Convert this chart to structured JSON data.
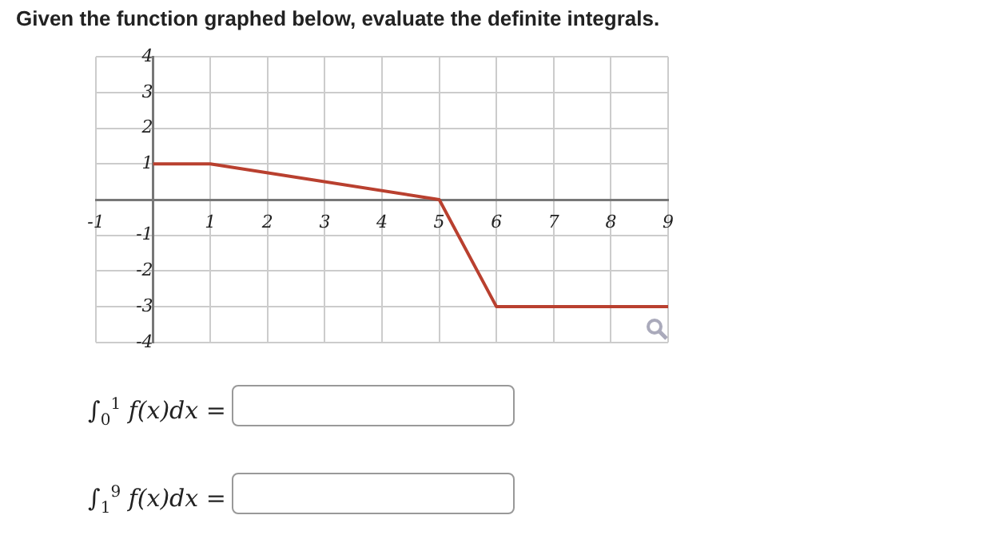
{
  "chart_data": {
    "type": "line",
    "title": "Given the function graphed below, evaluate the definite integrals.",
    "x": [
      0,
      1,
      5,
      6,
      9
    ],
    "series": [
      {
        "color": "#b9402f",
        "values": [
          1,
          1,
          0,
          -3,
          -3
        ]
      }
    ],
    "xlim": [
      -1,
      9
    ],
    "xticks": [
      -1,
      {
        "value": 0,
        "label": null
      },
      1,
      2,
      3,
      4,
      5,
      6,
      7,
      8,
      9
    ],
    "ylim": [
      -4,
      4
    ],
    "yticks": [
      -4,
      -3,
      -2,
      -1,
      {
        "value": 0,
        "label": null
      },
      1,
      2,
      3,
      4
    ],
    "grid": true,
    "legend": false,
    "marker": "none",
    "line_style": "solid",
    "annotations": [
      "∫$_{0}$$^{1}$ f(x)dx =",
      "∫$_{1}$$^{9}$ f(x)dx ="
    ]
  }
}
